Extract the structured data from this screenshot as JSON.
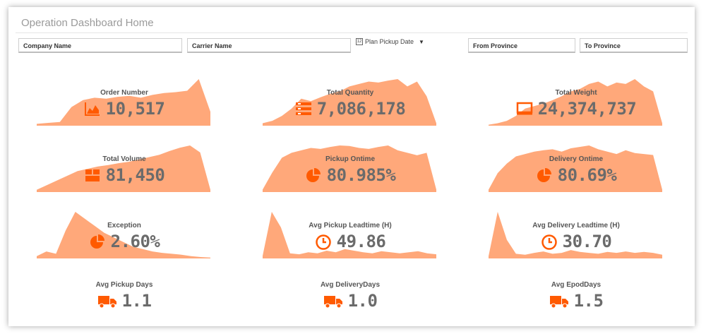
{
  "page_title": "Operation Dashboard Home",
  "filters": {
    "company": "Company Name",
    "carrier": "Carrier Name",
    "date_label": "Plan Pickup Date",
    "calendar_glyph": "12",
    "from_province": "From Province",
    "to_province": "To Province"
  },
  "colors": {
    "accent": "#ff5a00",
    "area": "#ffa87a",
    "value": "#6b6b6b"
  },
  "kpis": [
    {
      "label": "Order Number",
      "value": "10,517",
      "icon": "area-chart-icon",
      "spark": [
        4,
        6,
        8,
        40,
        55,
        60,
        58,
        62,
        64,
        60,
        66,
        70,
        72,
        75,
        100,
        30
      ]
    },
    {
      "label": "Total Quantity",
      "value": "7,086,178",
      "icon": "list-icon",
      "spark": [
        5,
        10,
        20,
        35,
        55,
        50,
        58,
        65,
        70,
        80,
        85,
        90,
        88,
        92,
        95,
        80,
        90,
        60,
        5
      ]
    },
    {
      "label": "Total Weight",
      "value": "24,374,737",
      "icon": "monitor-icon",
      "spark": [
        2,
        5,
        10,
        20,
        35,
        40,
        45,
        52,
        60,
        70,
        75,
        85,
        90,
        80,
        88,
        85,
        95,
        80,
        70,
        5
      ]
    },
    {
      "label": "Total Volume",
      "value": "81,450",
      "icon": "boxes-icon",
      "spark": [
        5,
        15,
        25,
        35,
        45,
        50,
        55,
        58,
        62,
        65,
        70,
        75,
        80,
        88,
        95,
        100,
        85,
        5
      ]
    },
    {
      "label": "Pickup Ontime",
      "value": "80.985%",
      "icon": "pie-chart-icon",
      "spark": [
        5,
        40,
        70,
        80,
        85,
        90,
        88,
        92,
        95,
        94,
        90,
        88,
        92,
        95,
        85,
        80,
        75,
        80,
        5
      ]
    },
    {
      "label": "Delivery Ontime",
      "value": "80.69%",
      "icon": "pie-chart-icon",
      "spark": [
        5,
        40,
        60,
        75,
        80,
        85,
        88,
        90,
        85,
        92,
        95,
        98,
        90,
        85,
        80,
        88,
        82,
        80,
        78,
        5
      ]
    },
    {
      "label": "Exception",
      "value": "2.60%",
      "icon": "pie-chart-icon",
      "spark": [
        5,
        15,
        10,
        60,
        100,
        85,
        70,
        55,
        45,
        35,
        25,
        20,
        15,
        12,
        10,
        8,
        5,
        3,
        2
      ]
    },
    {
      "label": "Avg Pickup Leadtime (H)",
      "value": "49.86",
      "icon": "clock-icon",
      "spark": [
        5,
        90,
        60,
        10,
        8,
        12,
        10,
        15,
        12,
        18,
        15,
        12,
        10,
        14,
        12,
        10,
        12,
        14,
        10,
        8
      ]
    },
    {
      "label": "Avg Delivery Leadtime (H)",
      "value": "30.70",
      "icon": "clock-icon",
      "spark": [
        5,
        100,
        40,
        10,
        8,
        12,
        15,
        10,
        12,
        18,
        14,
        12,
        10,
        14,
        12,
        15,
        12,
        14,
        12,
        8
      ]
    },
    {
      "label": "Avg Pickup Days",
      "value": "1.1",
      "icon": "truck-icon",
      "spark": []
    },
    {
      "label": "Avg DeliveryDays",
      "value": "1.0",
      "icon": "truck-icon",
      "spark": []
    },
    {
      "label": "Avg EpodDays",
      "value": "1.5",
      "icon": "truck-icon",
      "spark": []
    }
  ]
}
